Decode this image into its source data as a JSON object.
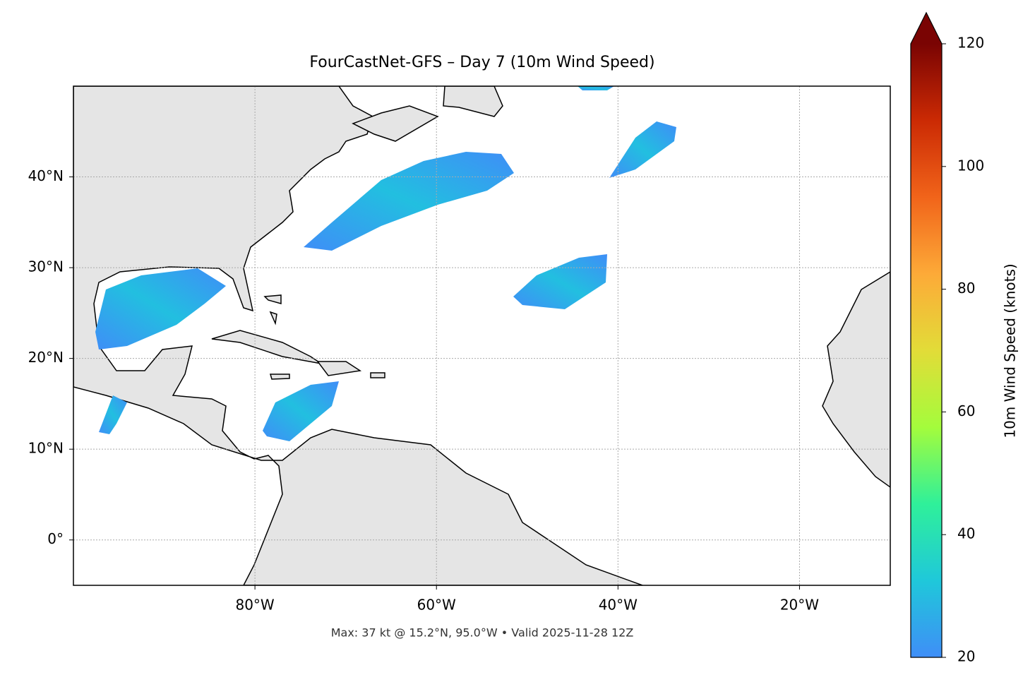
{
  "chart_data": {
    "type": "map",
    "title": "FourCastNet-GFS – Day 7 (10m Wind Speed)",
    "footer": "Max: 37 kt @ 15.2°N, 95.0°W • Valid 2025-11-28 12Z",
    "xlim": [
      -100,
      -10
    ],
    "ylim": [
      -5,
      50
    ],
    "xticks": [
      {
        "value": -80,
        "label": "80°W"
      },
      {
        "value": -60,
        "label": "60°W"
      },
      {
        "value": -40,
        "label": "40°W"
      },
      {
        "value": -20,
        "label": "20°W"
      }
    ],
    "yticks": [
      {
        "value": 0,
        "label": "0°"
      },
      {
        "value": 10,
        "label": "10°N"
      },
      {
        "value": 20,
        "label": "20°N"
      },
      {
        "value": 30,
        "label": "30°N"
      },
      {
        "value": 40,
        "label": "40°N"
      }
    ],
    "grid": true,
    "colorbar": {
      "label": "10m Wind Speed (knots)",
      "clim": [
        20,
        120
      ],
      "ticks": [
        20,
        40,
        60,
        80,
        100,
        120
      ],
      "extend": "max",
      "colors": [
        "#3f8ef7",
        "#1fc8da",
        "#2ff09a",
        "#a4fc3c",
        "#e2dc38",
        "#fdaa38",
        "#f1641a",
        "#cb2a04",
        "#7a0403"
      ]
    }
  }
}
